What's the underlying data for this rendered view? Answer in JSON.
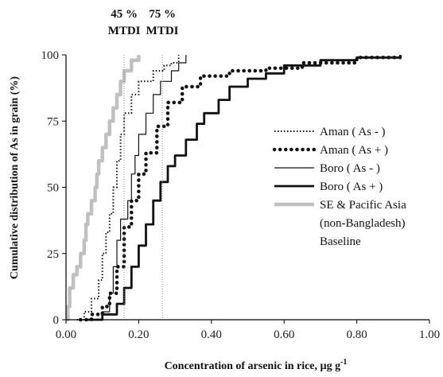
{
  "chart_data": {
    "type": "line",
    "xlabel": "Concentration of arsenic in rice, µg g",
    "xlabel_sup": "-1",
    "ylabel": "Cumulative distribution of As in grain (%)",
    "xlim": [
      0,
      1
    ],
    "ylim": [
      0,
      100
    ],
    "x_ticks": [
      "0.00",
      "0.20",
      "0.40",
      "0.60",
      "0.80",
      "1.00"
    ],
    "y_ticks": [
      "0",
      "25",
      "50",
      "75",
      "100"
    ],
    "grid": false,
    "legend_position": "right",
    "annotations": [
      {
        "line1": "45 %",
        "line2": "MTDI",
        "x": 0.16
      },
      {
        "line1": "75 %",
        "line2": "MTDI",
        "x": 0.265
      }
    ],
    "series": [
      {
        "name": "SE & Pacific Asia (non-Bangladesh) Baseline",
        "legend_lines": [
          "SE & Pacific Asia",
          "(non-Bangladesh)",
          "Baseline"
        ],
        "style": "thick-gray",
        "color": "#c0c0c0",
        "points": [
          [
            0.0,
            0
          ],
          [
            0.005,
            5
          ],
          [
            0.01,
            12
          ],
          [
            0.02,
            17
          ],
          [
            0.03,
            20
          ],
          [
            0.04,
            25
          ],
          [
            0.05,
            30
          ],
          [
            0.055,
            36
          ],
          [
            0.06,
            40
          ],
          [
            0.07,
            45
          ],
          [
            0.08,
            50
          ],
          [
            0.085,
            55
          ],
          [
            0.09,
            60
          ],
          [
            0.1,
            65
          ],
          [
            0.11,
            70
          ],
          [
            0.12,
            75
          ],
          [
            0.13,
            80
          ],
          [
            0.14,
            85
          ],
          [
            0.15,
            90
          ],
          [
            0.16,
            94
          ],
          [
            0.18,
            98
          ],
          [
            0.2,
            100
          ]
        ]
      },
      {
        "name": "Aman ( As - )",
        "style": "dotted-thin",
        "color": "#111111",
        "points": [
          [
            0.03,
            0
          ],
          [
            0.05,
            3
          ],
          [
            0.07,
            8
          ],
          [
            0.09,
            15
          ],
          [
            0.1,
            25
          ],
          [
            0.11,
            33
          ],
          [
            0.12,
            40
          ],
          [
            0.13,
            50
          ],
          [
            0.14,
            60
          ],
          [
            0.15,
            70
          ],
          [
            0.16,
            78
          ],
          [
            0.18,
            85
          ],
          [
            0.2,
            90
          ],
          [
            0.24,
            94
          ],
          [
            0.27,
            96
          ],
          [
            0.29,
            97
          ],
          [
            0.31,
            100
          ]
        ]
      },
      {
        "name": "Aman ( As + )",
        "style": "dotted-thick",
        "color": "#111111",
        "points": [
          [
            0.04,
            0
          ],
          [
            0.07,
            2
          ],
          [
            0.1,
            5
          ],
          [
            0.12,
            10
          ],
          [
            0.14,
            20
          ],
          [
            0.16,
            35
          ],
          [
            0.18,
            45
          ],
          [
            0.2,
            55
          ],
          [
            0.22,
            63
          ],
          [
            0.25,
            73
          ],
          [
            0.28,
            82
          ],
          [
            0.32,
            88
          ],
          [
            0.37,
            92
          ],
          [
            0.45,
            94
          ],
          [
            0.55,
            95
          ],
          [
            0.65,
            97
          ],
          [
            0.8,
            99
          ],
          [
            0.92,
            100
          ]
        ]
      },
      {
        "name": "Boro ( As - )",
        "style": "solid-thin",
        "color": "#111111",
        "points": [
          [
            0.08,
            0
          ],
          [
            0.1,
            3
          ],
          [
            0.12,
            10
          ],
          [
            0.13,
            20
          ],
          [
            0.14,
            30
          ],
          [
            0.15,
            38
          ],
          [
            0.17,
            45
          ],
          [
            0.18,
            55
          ],
          [
            0.19,
            62
          ],
          [
            0.2,
            70
          ],
          [
            0.22,
            78
          ],
          [
            0.24,
            85
          ],
          [
            0.26,
            90
          ],
          [
            0.29,
            94
          ],
          [
            0.31,
            97
          ],
          [
            0.33,
            100
          ]
        ]
      },
      {
        "name": "Boro ( As + )",
        "style": "solid-thick",
        "color": "#111111",
        "points": [
          [
            0.06,
            0
          ],
          [
            0.1,
            2
          ],
          [
            0.14,
            6
          ],
          [
            0.16,
            12
          ],
          [
            0.18,
            20
          ],
          [
            0.2,
            28
          ],
          [
            0.22,
            36
          ],
          [
            0.24,
            45
          ],
          [
            0.26,
            52
          ],
          [
            0.28,
            58
          ],
          [
            0.3,
            62
          ],
          [
            0.33,
            68
          ],
          [
            0.36,
            74
          ],
          [
            0.38,
            78
          ],
          [
            0.42,
            83
          ],
          [
            0.45,
            88
          ],
          [
            0.5,
            91
          ],
          [
            0.55,
            93
          ],
          [
            0.6,
            96
          ],
          [
            0.7,
            98
          ],
          [
            0.8,
            99
          ],
          [
            0.92,
            100
          ]
        ]
      }
    ]
  }
}
